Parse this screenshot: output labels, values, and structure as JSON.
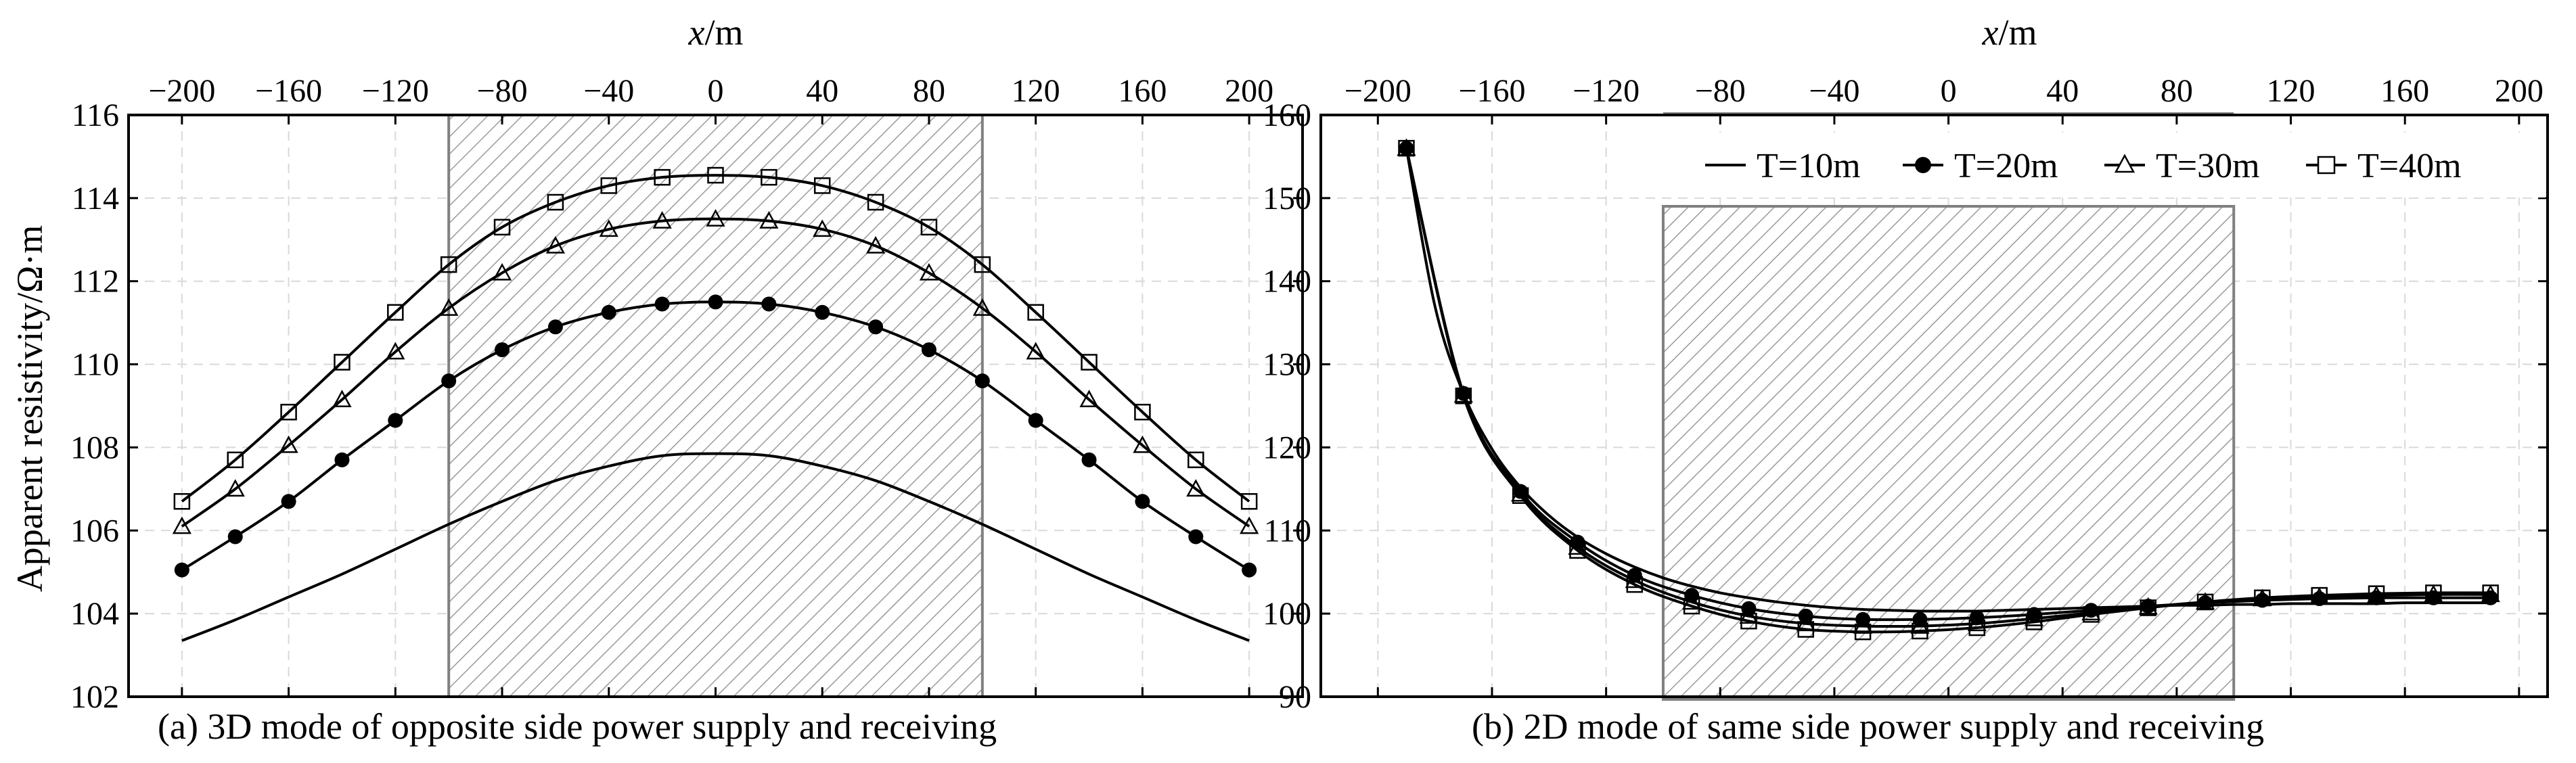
{
  "chart_data": [
    {
      "type": "line",
      "caption": "(a) 3D mode of opposite side power supply and receiving",
      "xlabel_var": "x",
      "xlabel_unit": "/m",
      "ylabel": "Apparent resistivity/Ω·m",
      "xlim": [
        -220,
        220
      ],
      "ylim": [
        102,
        116
      ],
      "xticks": [
        "−200",
        "−160",
        "−120",
        "−80",
        "−40",
        "0",
        "40",
        "80",
        "120",
        "160",
        "200"
      ],
      "xtick_values": [
        -200,
        -160,
        -120,
        -80,
        -40,
        0,
        40,
        80,
        120,
        160,
        200
      ],
      "yticks": [
        "102",
        "104",
        "106",
        "108",
        "110",
        "112",
        "114",
        "116"
      ],
      "ytick_values": [
        102,
        104,
        106,
        108,
        110,
        112,
        114,
        116
      ],
      "shaded_region": [
        -100,
        100
      ],
      "grid": true,
      "series": [
        {
          "name": "T=10m",
          "marker": "none",
          "x": [
            -200,
            -180,
            -160,
            -140,
            -120,
            -100,
            -80,
            -60,
            -40,
            -20,
            0,
            20,
            40,
            60,
            80,
            100,
            120,
            140,
            160,
            180,
            200
          ],
          "values": [
            103.35,
            103.85,
            104.4,
            104.95,
            105.55,
            106.15,
            106.7,
            107.2,
            107.55,
            107.8,
            107.85,
            107.8,
            107.55,
            107.2,
            106.7,
            106.15,
            105.55,
            104.95,
            104.4,
            103.85,
            103.35
          ]
        },
        {
          "name": "T=20m",
          "marker": "circle",
          "x": [
            -200,
            -180,
            -160,
            -140,
            -120,
            -100,
            -80,
            -60,
            -40,
            -20,
            0,
            20,
            40,
            60,
            80,
            100,
            120,
            140,
            160,
            180,
            200
          ],
          "values": [
            105.05,
            105.85,
            106.7,
            107.7,
            108.65,
            109.6,
            110.35,
            110.9,
            111.25,
            111.45,
            111.5,
            111.45,
            111.25,
            110.9,
            110.35,
            109.6,
            108.65,
            107.7,
            106.7,
            105.85,
            105.05
          ]
        },
        {
          "name": "T=30m",
          "marker": "triangle",
          "x": [
            -200,
            -180,
            -160,
            -140,
            -120,
            -100,
            -80,
            -60,
            -40,
            -20,
            0,
            20,
            40,
            60,
            80,
            100,
            120,
            140,
            160,
            180,
            200
          ],
          "values": [
            106.1,
            107.0,
            108.05,
            109.15,
            110.3,
            111.35,
            112.2,
            112.85,
            113.25,
            113.45,
            113.5,
            113.45,
            113.25,
            112.85,
            112.2,
            111.35,
            110.3,
            109.15,
            108.05,
            107.0,
            106.1
          ]
        },
        {
          "name": "T=40m",
          "marker": "square",
          "x": [
            -200,
            -180,
            -160,
            -140,
            -120,
            -100,
            -80,
            -60,
            -40,
            -20,
            0,
            20,
            40,
            60,
            80,
            100,
            120,
            140,
            160,
            180,
            200
          ],
          "values": [
            106.7,
            107.7,
            108.85,
            110.05,
            111.25,
            112.4,
            113.3,
            113.9,
            114.3,
            114.5,
            114.55,
            114.5,
            114.3,
            113.9,
            113.3,
            112.4,
            111.25,
            110.05,
            108.85,
            107.7,
            106.7
          ]
        }
      ]
    },
    {
      "type": "line",
      "caption": "(b) 2D mode of same side power supply and receiving",
      "xlabel_var": "x",
      "xlabel_unit": "/m",
      "ylabel": "",
      "xlim": [
        -220,
        210
      ],
      "ylim": [
        90,
        160
      ],
      "xticks": [
        "−200",
        "−160",
        "−120",
        "−80",
        "−40",
        "0",
        "40",
        "80",
        "120",
        "160",
        "200"
      ],
      "xtick_values": [
        -200,
        -160,
        -120,
        -80,
        -40,
        0,
        40,
        80,
        120,
        160,
        200
      ],
      "yticks": [
        "90",
        "100",
        "110",
        "120",
        "130",
        "140",
        "150",
        "160"
      ],
      "ytick_values": [
        90,
        100,
        110,
        120,
        130,
        140,
        150,
        160
      ],
      "shaded_region": [
        -100,
        100
      ],
      "grid": true,
      "legend": [
        "T=10m",
        "T=20m",
        "T=30m",
        "T=40m"
      ],
      "series": [
        {
          "name": "T=10m",
          "marker": "none",
          "x": [
            -190,
            -180,
            -170,
            -160,
            -150,
            -140,
            -130,
            -120,
            -110,
            -100,
            -90,
            -80,
            -70,
            -60,
            -50,
            -40,
            -30,
            -20,
            -10,
            0,
            10,
            20,
            30,
            40,
            50,
            60,
            70,
            80,
            90,
            100,
            110,
            120,
            130,
            140,
            150,
            160,
            170,
            180,
            190
          ],
          "values": [
            156,
            137,
            126.5,
            119.8,
            115.2,
            111.8,
            109.2,
            107.2,
            105.6,
            104.3,
            103.3,
            102.5,
            101.9,
            101.4,
            101.0,
            100.7,
            100.5,
            100.4,
            100.3,
            100.3,
            100.3,
            100.4,
            100.5,
            100.6,
            100.7,
            100.8,
            100.9,
            101.0,
            101.0,
            101.1,
            101.1,
            101.2,
            101.2,
            101.2,
            101.2,
            101.3,
            101.3,
            101.3,
            101.3
          ]
        },
        {
          "name": "T=20m",
          "marker": "circle",
          "x": [
            -190,
            -170,
            -150,
            -130,
            -110,
            -90,
            -70,
            -50,
            -30,
            -10,
            10,
            30,
            50,
            70,
            90,
            110,
            130,
            150,
            170,
            190
          ],
          "values": [
            156,
            126.5,
            114.7,
            108.6,
            104.6,
            102.2,
            100.6,
            99.7,
            99.3,
            99.3,
            99.5,
            99.9,
            100.4,
            100.9,
            101.3,
            101.6,
            101.8,
            101.9,
            101.9,
            101.9
          ]
        },
        {
          "name": "T=30m",
          "marker": "triangle",
          "x": [
            -190,
            -170,
            -150,
            -130,
            -110,
            -90,
            -70,
            -50,
            -30,
            -10,
            10,
            30,
            50,
            70,
            90,
            110,
            130,
            150,
            170,
            190
          ],
          "values": [
            156,
            126.3,
            114.4,
            108.0,
            104.0,
            101.4,
            99.7,
            98.8,
            98.5,
            98.5,
            98.8,
            99.4,
            100.1,
            100.8,
            101.4,
            101.8,
            102.0,
            102.2,
            102.3,
            102.3
          ]
        },
        {
          "name": "T=40m",
          "marker": "square",
          "x": [
            -190,
            -170,
            -150,
            -130,
            -110,
            -90,
            -70,
            -50,
            -30,
            -10,
            10,
            30,
            50,
            70,
            90,
            110,
            130,
            150,
            170,
            190
          ],
          "values": [
            156,
            126.2,
            114.2,
            107.6,
            103.5,
            100.9,
            99.1,
            98.1,
            97.8,
            97.9,
            98.3,
            99.0,
            99.9,
            100.7,
            101.4,
            101.9,
            102.2,
            102.4,
            102.5,
            102.5
          ]
        }
      ]
    }
  ]
}
